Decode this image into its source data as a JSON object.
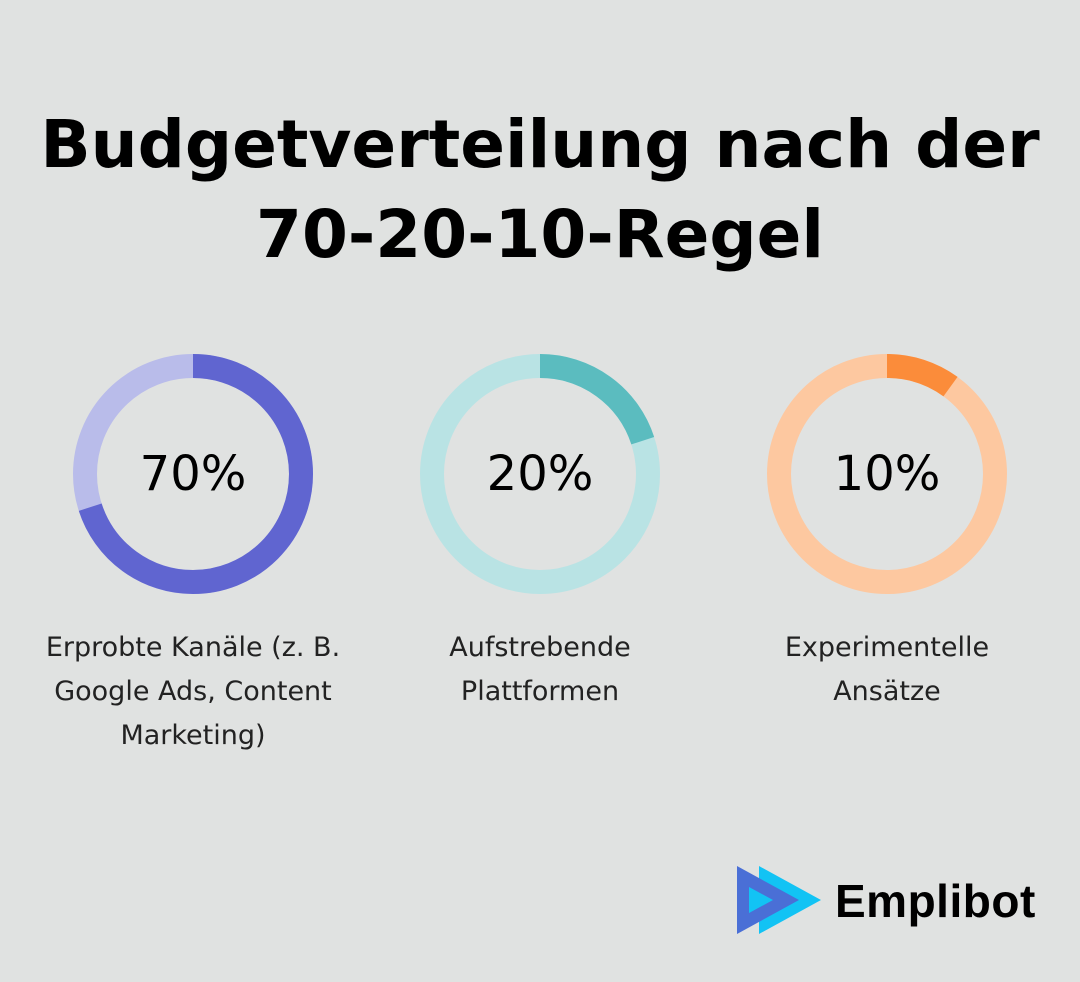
{
  "chart_data": [
    {
      "type": "pie",
      "variant": "donut",
      "value": 70,
      "label": "70%",
      "category": "Erprobte Kanäle (z. B. Google Ads, Content Marketing)",
      "color": "#6065d0",
      "track_color": "#b9bcea"
    },
    {
      "type": "pie",
      "variant": "donut",
      "value": 20,
      "label": "20%",
      "category": "Aufstrebende Plattformen",
      "color": "#5bbcbf",
      "track_color": "#b9e3e4"
    },
    {
      "type": "pie",
      "variant": "donut",
      "value": 10,
      "label": "10%",
      "category": "Experimentelle Ansätze",
      "color": "#fb8c3a",
      "track_color": "#fdc8a0"
    }
  ],
  "title_line1": "Budgetverteilung nach der",
  "title_line2": "70-20-10-Regel",
  "logo": {
    "text": "Emplibot",
    "colors": [
      "#4a6fd6",
      "#12c3f4"
    ]
  }
}
